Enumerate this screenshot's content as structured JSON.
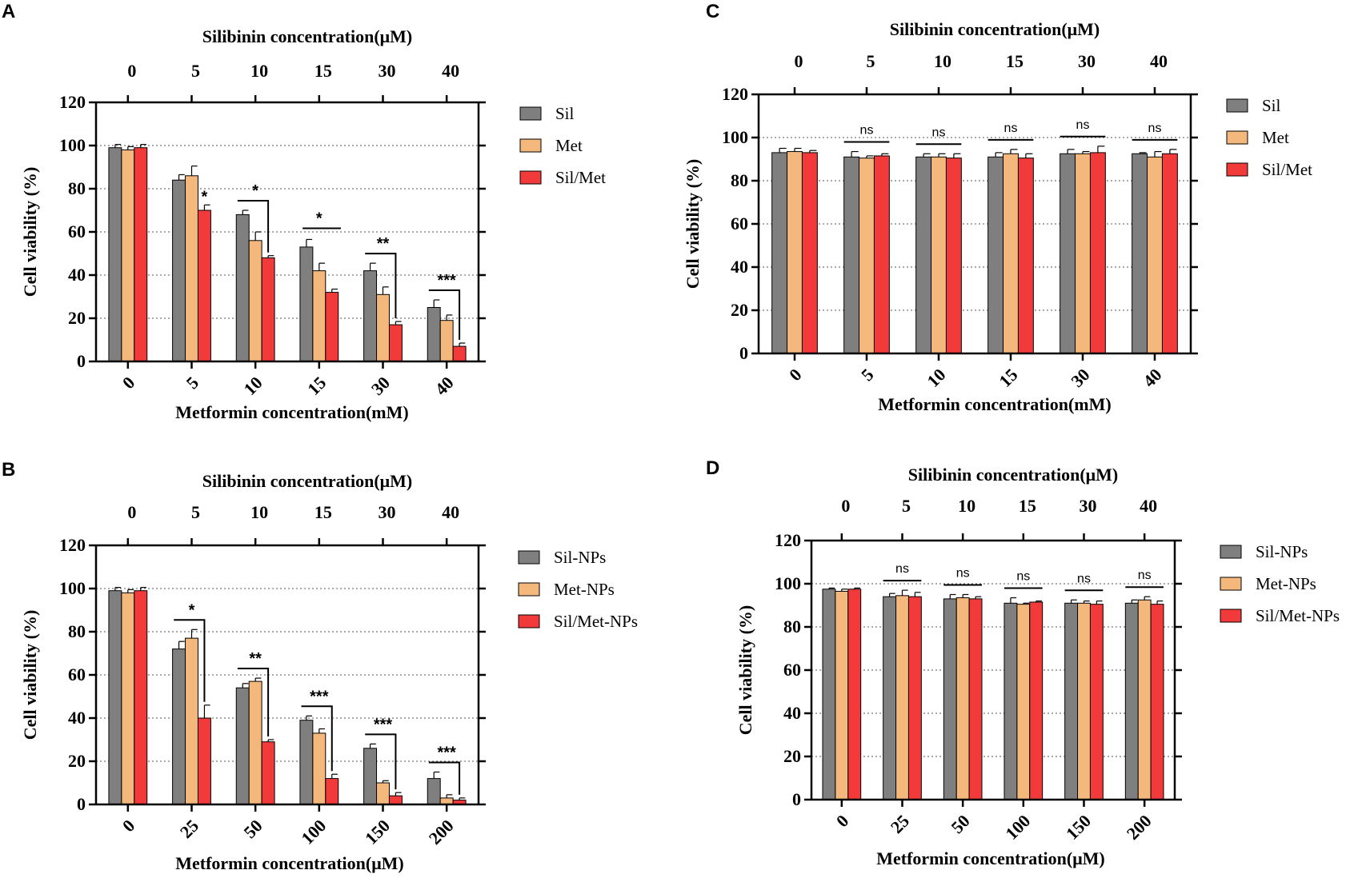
{
  "colors": {
    "sil": "#7f7f7f",
    "met": "#f4b87c",
    "combo": "#f23a3a",
    "axis": "#000000",
    "grid": "#555555"
  },
  "chart_data": [
    {
      "panel": "A",
      "type": "bar",
      "top_axis_title": "Silibinin concentration(μM)",
      "top_ticks": [
        "0",
        "5",
        "10",
        "15",
        "30",
        "40"
      ],
      "xlabel": "Metformin concentration(mM)",
      "ylabel": "Cell viability (%)",
      "categories": [
        "0",
        "5",
        "10",
        "15",
        "30",
        "40"
      ],
      "ylim": [
        0,
        120
      ],
      "yticks": [
        "0",
        "20",
        "40",
        "60",
        "80",
        "100",
        "120"
      ],
      "gridlines": [
        20,
        40,
        60,
        80,
        100
      ],
      "series": [
        {
          "name": "Sil",
          "values": [
            99,
            84,
            68,
            53,
            42,
            25
          ],
          "errors": [
            1.5,
            2.5,
            2,
            3.5,
            3.5,
            3.5
          ]
        },
        {
          "name": "Met",
          "values": [
            98,
            86,
            56,
            42,
            31,
            19
          ],
          "errors": [
            1.5,
            4.5,
            4,
            3.5,
            3.5,
            2.5
          ]
        },
        {
          "name": "Sil/Met",
          "values": [
            99,
            70,
            48,
            32,
            17,
            7
          ],
          "errors": [
            1.5,
            2.5,
            1,
            1.5,
            1.5,
            1.5
          ]
        }
      ],
      "annotations": [
        {
          "category": 1,
          "text": "*",
          "style": "star"
        },
        {
          "category": 2,
          "text": "*",
          "style": "bracket"
        },
        {
          "category": 3,
          "text": "*",
          "style": "line"
        },
        {
          "category": 4,
          "text": "**",
          "style": "bracket"
        },
        {
          "category": 5,
          "text": "***",
          "style": "bracket"
        }
      ]
    },
    {
      "panel": "B",
      "type": "bar",
      "top_axis_title": "Silibinin concentration(μM)",
      "top_ticks": [
        "0",
        "5",
        "10",
        "15",
        "30",
        "40"
      ],
      "xlabel": "Metformin concentration(μM)",
      "ylabel": "Cell viability (%)",
      "categories": [
        "0",
        "25",
        "50",
        "100",
        "150",
        "200"
      ],
      "ylim": [
        0,
        120
      ],
      "yticks": [
        "0",
        "20",
        "40",
        "60",
        "80",
        "100",
        "120"
      ],
      "gridlines": [
        20,
        40,
        60,
        80,
        100
      ],
      "series": [
        {
          "name": "Sil-NPs",
          "values": [
            99,
            72,
            54,
            39,
            26,
            12
          ],
          "errors": [
            1.5,
            3.5,
            2,
            2,
            2,
            3
          ]
        },
        {
          "name": "Met-NPs",
          "values": [
            98,
            77,
            57,
            33,
            10,
            3
          ],
          "errors": [
            1.5,
            4,
            1.5,
            2,
            1,
            1.5
          ]
        },
        {
          "name": "Sil/Met-NPs",
          "values": [
            99,
            40,
            29,
            12,
            4,
            2
          ],
          "errors": [
            1.5,
            6,
            1,
            2,
            1.5,
            1
          ]
        }
      ],
      "annotations": [
        {
          "category": 1,
          "text": "*",
          "style": "bracket"
        },
        {
          "category": 2,
          "text": "**",
          "style": "bracket"
        },
        {
          "category": 3,
          "text": "***",
          "style": "bracket"
        },
        {
          "category": 4,
          "text": "***",
          "style": "bracket"
        },
        {
          "category": 5,
          "text": "***",
          "style": "bracket"
        }
      ]
    },
    {
      "panel": "C",
      "type": "bar",
      "top_axis_title": "Silibinin concentration(μM)",
      "top_ticks": [
        "0",
        "5",
        "10",
        "15",
        "30",
        "40"
      ],
      "xlabel": "Metformin concentration(mM)",
      "ylabel": "Cell viability (%)",
      "categories": [
        "0",
        "5",
        "10",
        "15",
        "30",
        "40"
      ],
      "ylim": [
        0,
        120
      ],
      "yticks": [
        "0",
        "20",
        "40",
        "60",
        "80",
        "100",
        "120"
      ],
      "gridlines": [
        20,
        40,
        60,
        80,
        100
      ],
      "series": [
        {
          "name": "Sil",
          "values": [
            93,
            91,
            91,
            91,
            92.5,
            92.5
          ],
          "errors": [
            2,
            2.5,
            1.5,
            2,
            2,
            0.5
          ]
        },
        {
          "name": "Met",
          "values": [
            93.5,
            90.5,
            91,
            92.5,
            92.5,
            91
          ],
          "errors": [
            1.5,
            1,
            1.5,
            2,
            1,
            2.5
          ]
        },
        {
          "name": "Sil/Met",
          "values": [
            93,
            91.5,
            90.5,
            90.5,
            93,
            92.5
          ],
          "errors": [
            1,
            1,
            2,
            2,
            3,
            2
          ]
        }
      ],
      "annotations": [
        {
          "category": 1,
          "text": "ns",
          "style": "ns"
        },
        {
          "category": 2,
          "text": "ns",
          "style": "ns"
        },
        {
          "category": 3,
          "text": "ns",
          "style": "ns"
        },
        {
          "category": 4,
          "text": "ns",
          "style": "ns"
        },
        {
          "category": 5,
          "text": "ns",
          "style": "ns"
        }
      ]
    },
    {
      "panel": "D",
      "type": "bar",
      "top_axis_title": "Silibinin concentration(μM)",
      "top_ticks": [
        "0",
        "5",
        "10",
        "15",
        "30",
        "40"
      ],
      "xlabel": "Metformin concentration(μM)",
      "ylabel": "Cell viability (%)",
      "categories": [
        "0",
        "25",
        "50",
        "100",
        "150",
        "200"
      ],
      "ylim": [
        0,
        120
      ],
      "yticks": [
        "0",
        "20",
        "40",
        "60",
        "80",
        "100",
        "120"
      ],
      "gridlines": [
        20,
        40,
        60,
        80,
        100
      ],
      "series": [
        {
          "name": "Sil-NPs",
          "values": [
            97.5,
            94,
            93,
            91,
            91,
            91
          ],
          "errors": [
            0.5,
            1.5,
            2,
            2.5,
            1.5,
            1.5
          ]
        },
        {
          "name": "Met-NPs",
          "values": [
            96.5,
            94.5,
            93.5,
            90.5,
            91,
            92.5
          ],
          "errors": [
            1,
            2.5,
            1.5,
            0.5,
            1,
            1.5
          ]
        },
        {
          "name": "Sil/Met-NPs",
          "values": [
            97.5,
            94,
            93,
            91.5,
            90.5,
            90.5
          ],
          "errors": [
            0.5,
            2,
            1,
            0.5,
            1.5,
            1.5
          ]
        }
      ],
      "annotations": [
        {
          "category": 1,
          "text": "ns",
          "style": "ns"
        },
        {
          "category": 2,
          "text": "ns",
          "style": "ns"
        },
        {
          "category": 3,
          "text": "ns",
          "style": "ns"
        },
        {
          "category": 4,
          "text": "ns",
          "style": "ns"
        },
        {
          "category": 5,
          "text": "ns",
          "style": "ns"
        }
      ]
    }
  ]
}
